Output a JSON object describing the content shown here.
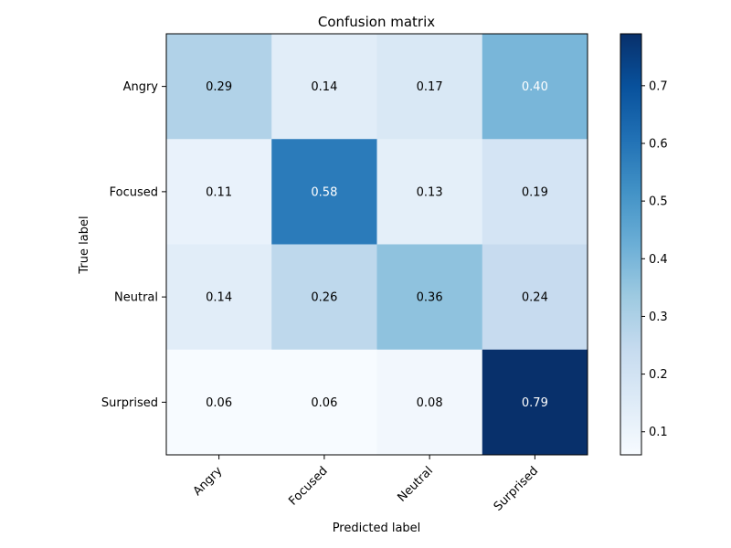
{
  "chart_data": {
    "type": "heatmap",
    "title": "Confusion matrix",
    "xlabel": "Predicted label",
    "ylabel": "True label",
    "x_categories": [
      "Angry",
      "Focused",
      "Neutral",
      "Surprised"
    ],
    "y_categories": [
      "Angry",
      "Focused",
      "Neutral",
      "Surprised"
    ],
    "values": [
      [
        0.29,
        0.14,
        0.17,
        0.4
      ],
      [
        0.11,
        0.58,
        0.13,
        0.19
      ],
      [
        0.14,
        0.26,
        0.36,
        0.24
      ],
      [
        0.06,
        0.06,
        0.08,
        0.79
      ]
    ],
    "value_labels": [
      [
        "0.29",
        "0.14",
        "0.17",
        "0.40"
      ],
      [
        "0.11",
        "0.58",
        "0.13",
        "0.19"
      ],
      [
        "0.14",
        "0.26",
        "0.36",
        "0.24"
      ],
      [
        "0.06",
        "0.06",
        "0.08",
        "0.79"
      ]
    ],
    "colormap": "Blues",
    "color_range": [
      0.06,
      0.79
    ],
    "colorbar_ticks": [
      "0.1",
      "0.2",
      "0.3",
      "0.4",
      "0.5",
      "0.6",
      "0.7"
    ],
    "text_colors": {
      "light": "#ffffff",
      "dark": "#000000"
    },
    "grid": false
  }
}
